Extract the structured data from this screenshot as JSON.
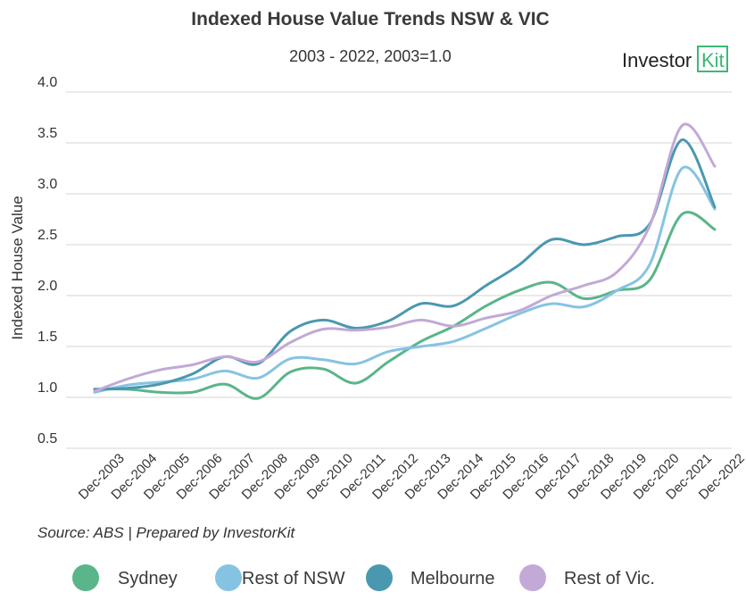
{
  "chart_data": {
    "type": "line",
    "title": "Indexed House Value Trends NSW & VIC",
    "subtitle": "2003 - 2022, 2003=1.0",
    "ylabel": "Indexed House Value",
    "xlabel": "",
    "ylim": [
      0.5,
      4.0
    ],
    "yticks": [
      "0.5",
      "1.0",
      "1.5",
      "2.0",
      "2.5",
      "3.0",
      "3.5",
      "4.0"
    ],
    "grid": true,
    "legend_position": "bottom",
    "categories": [
      "Dec-2003",
      "Dec-2004",
      "Dec-2005",
      "Dec-2006",
      "Dec-2007",
      "Dec-2008",
      "Dec-2009",
      "Dec-2010",
      "Dec-2011",
      "Dec-2012",
      "Dec-2013",
      "Dec-2014",
      "Dec-2015",
      "Dec-2016",
      "Dec-2017",
      "Dec-2018",
      "Dec-2019",
      "Dec-2020",
      "Dec-2021",
      "Dec-2022"
    ],
    "series": [
      {
        "name": "Sydney",
        "color": "#5ab58a",
        "values": [
          1.08,
          1.08,
          1.05,
          1.05,
          1.13,
          0.99,
          1.25,
          1.28,
          1.14,
          1.35,
          1.55,
          1.7,
          1.9,
          2.05,
          2.13,
          1.97,
          2.05,
          2.15,
          2.8,
          2.65
        ]
      },
      {
        "name": "Rest of NSW",
        "color": "#86c3e3",
        "values": [
          1.05,
          1.12,
          1.15,
          1.18,
          1.26,
          1.19,
          1.38,
          1.37,
          1.33,
          1.45,
          1.5,
          1.55,
          1.68,
          1.82,
          1.92,
          1.89,
          2.05,
          2.3,
          3.25,
          2.85
        ]
      },
      {
        "name": "Melbourne",
        "color": "#4a98af",
        "values": [
          1.08,
          1.09,
          1.13,
          1.23,
          1.4,
          1.33,
          1.65,
          1.76,
          1.68,
          1.75,
          1.92,
          1.9,
          2.1,
          2.3,
          2.55,
          2.5,
          2.58,
          2.7,
          3.53,
          2.87
        ]
      },
      {
        "name": "Rest of Vic.",
        "color": "#c2a9d6",
        "values": [
          1.06,
          1.18,
          1.27,
          1.32,
          1.4,
          1.35,
          1.54,
          1.67,
          1.66,
          1.69,
          1.76,
          1.7,
          1.78,
          1.85,
          2.0,
          2.1,
          2.23,
          2.68,
          3.67,
          3.27
        ]
      }
    ]
  },
  "source_text": "Source: ABS | Prepared by InvestorKit",
  "brand": {
    "text": "Investor",
    "box_text": "Kit",
    "color": "#3cb878"
  }
}
